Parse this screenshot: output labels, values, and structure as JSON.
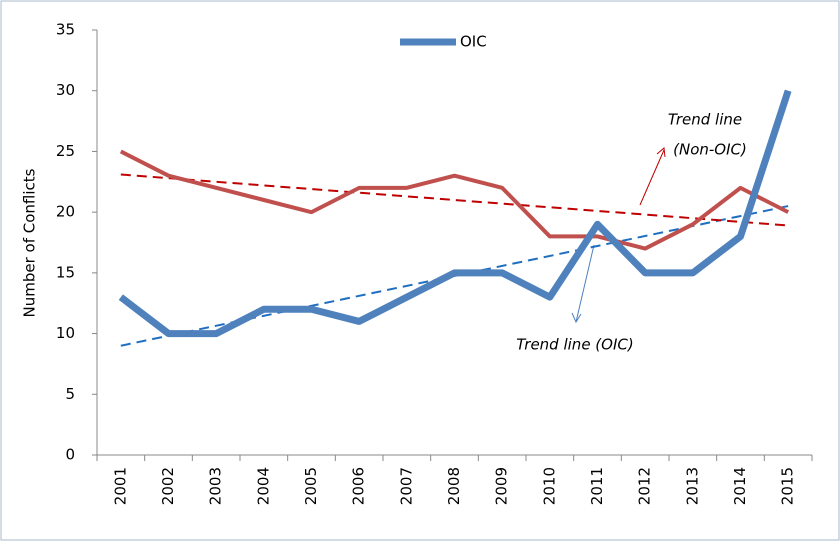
{
  "chart_data": {
    "type": "line",
    "categories": [
      "2001",
      "2002",
      "2003",
      "2004",
      "2005",
      "2006",
      "2007",
      "2008",
      "2009",
      "2010",
      "2011",
      "2012",
      "2013",
      "2014",
      "2015"
    ],
    "series": [
      {
        "name": "OIC",
        "color": "#4f81bd",
        "values": [
          13,
          10,
          10,
          12,
          12,
          11,
          13,
          15,
          15,
          13,
          19,
          15,
          15,
          18,
          30
        ]
      },
      {
        "color": "#c0504d",
        "values": [
          25,
          23,
          22,
          21,
          20,
          22,
          22,
          23,
          22,
          18,
          18,
          17,
          19,
          22,
          20
        ]
      }
    ],
    "trend_lines": [
      {
        "color": "#1f6fc0",
        "values": [
          9,
          20.5
        ]
      },
      {
        "color": "#c00000",
        "values": [
          23.1,
          18.9
        ]
      }
    ],
    "y_label": "Number of Conflicts",
    "ylim": [
      0,
      35
    ],
    "yticks": [
      0,
      5,
      10,
      15,
      20,
      25,
      30,
      35
    ],
    "grid": false,
    "legend": "top",
    "annotations": [
      {
        "lines": [
          "Trend line",
          "(Non-OIC)"
        ],
        "color": "#c00000"
      },
      {
        "lines": [
          "Trend line (OIC)"
        ],
        "color": "#1f3f7f"
      }
    ]
  }
}
